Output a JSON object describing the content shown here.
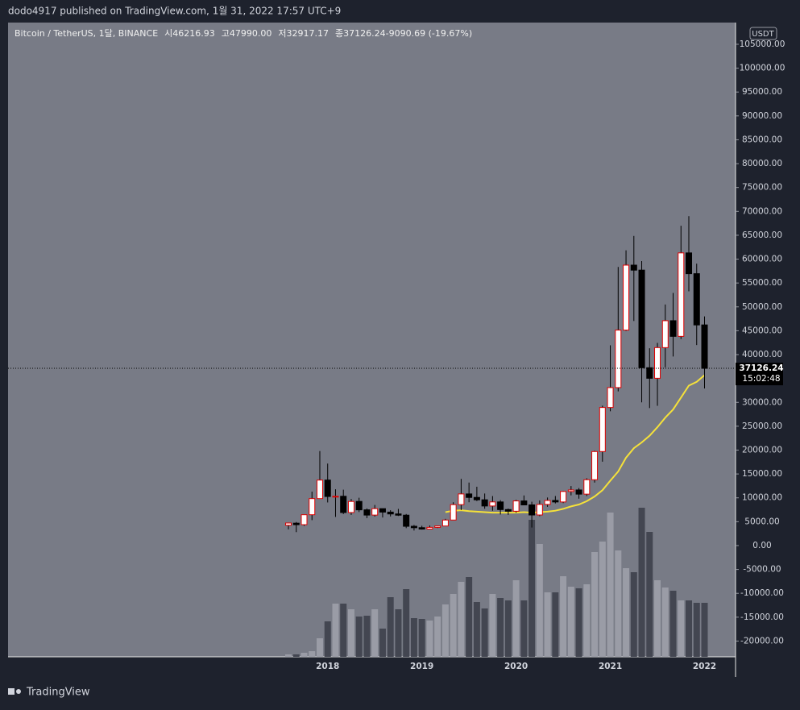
{
  "page": {
    "header": "dodo4917 published on TradingView.com, 1월 31, 2022 17:57 UTC+9",
    "footer": "TradingView"
  },
  "chart_data": {
    "type": "candlestick",
    "symbol": "Bitcoin / TetherUS, 1달, BINANCE",
    "legend": [
      {
        "label": "시",
        "value": "46216.93"
      },
      {
        "label": "고",
        "value": "47990.00"
      },
      {
        "label": "저",
        "value": "32917.17"
      },
      {
        "label": "종",
        "value": "37126.24"
      },
      {
        "label": "",
        "value": "-9090.69 (-19.67%)"
      }
    ],
    "currency": "USDT",
    "last_price": 37126.24,
    "countdown": "15:02:48",
    "categories": [
      null,
      null,
      null,
      null,
      null,
      "2018",
      null,
      null,
      null,
      null,
      null,
      null,
      null,
      null,
      null,
      null,
      null,
      "2019",
      null,
      null,
      null,
      null,
      null,
      null,
      null,
      null,
      null,
      null,
      null,
      "2020",
      null,
      null,
      null,
      null,
      null,
      null,
      null,
      null,
      null,
      null,
      null,
      "2021",
      null,
      null,
      null,
      null,
      null,
      null,
      null,
      null,
      null,
      null,
      null,
      "2022"
    ],
    "open": [
      4261,
      4689,
      4378,
      6463,
      9837,
      13716,
      10285,
      10326,
      6923,
      9246,
      7485,
      6391,
      7730,
      7011,
      6626,
      6369,
      4041,
      3742,
      3458,
      3813,
      4105,
      5350,
      8574,
      10817,
      10086,
      9588,
      8289,
      9140,
      7541,
      7195,
      9352,
      8523,
      6410,
      8620,
      9448,
      9138,
      11335,
      11649,
      10776,
      13791,
      19695,
      28923,
      33092,
      45135,
      58740,
      57694,
      37253,
      35045,
      41462,
      47101,
      43824,
      61300,
      56950,
      46216.93
    ],
    "high": [
      4745,
      4939,
      6470,
      11300,
      19798,
      17176,
      11786,
      11710,
      9759,
      10020,
      7786,
      8507,
      7760,
      7410,
      7680,
      6615,
      4313,
      4143,
      4198,
      4140,
      5600,
      9074,
      13970,
      13200,
      12325,
      10905,
      10370,
      9513,
      7750,
      9578,
      10500,
      9188,
      9460,
      10067,
      10380,
      11444,
      12468,
      12050,
      14100,
      19863,
      29300,
      41950,
      58352,
      61844,
      64854,
      59592,
      41330,
      42448,
      50500,
      52920,
      67000,
      69000,
      59053,
      47990
    ],
    "low": [
      3400,
      2817,
      4110,
      5325,
      10700,
      9035,
      6000,
      6600,
      6430,
      7032,
      5750,
      6070,
      5880,
      6100,
      6200,
      3652,
      3156,
      3349,
      3400,
      3670,
      4067,
      5350,
      7444,
      9070,
      9320,
      7710,
      7300,
      6515,
      6435,
      6871,
      8445,
      3782,
      6150,
      8117,
      8833,
      8893,
      10518,
      9825,
      10374,
      13195,
      17572,
      28130,
      32296,
      44950,
      47044,
      30000,
      28805,
      29278,
      37332,
      39600,
      43283,
      53256,
      42000,
      32917.17
    ],
    "close": [
      4724,
      4378,
      6463,
      9838,
      13716,
      10285,
      10326,
      6923,
      9246,
      7485,
      6391,
      7730,
      7011,
      6626,
      6369,
      4041,
      3742,
      3458,
      3813,
      4105,
      5350,
      8574,
      10817,
      10086,
      9588,
      8289,
      9140,
      7541,
      7195,
      9352,
      8523,
      6410,
      8620,
      9448,
      9138,
      11335,
      11649,
      10776,
      13791,
      19695,
      28923,
      33092,
      45135,
      58740,
      57694,
      37253,
      35045,
      41462,
      47101,
      43824,
      61300,
      56950,
      46216,
      37126.24
    ],
    "ma": [
      null,
      null,
      null,
      null,
      null,
      null,
      null,
      null,
      null,
      null,
      null,
      null,
      null,
      null,
      null,
      null,
      null,
      null,
      null,
      null,
      7000,
      7300,
      7400,
      7200,
      7100,
      7000,
      6900,
      6900,
      6900,
      6900,
      7000,
      6900,
      7000,
      7100,
      7300,
      7700,
      8200,
      8600,
      9300,
      10300,
      11600,
      13600,
      15500,
      18400,
      20400,
      21600,
      23000,
      24800,
      26800,
      28500,
      31000,
      33500,
      34300,
      35700
    ],
    "ma_color": "#f5e13a",
    "volume": [
      30,
      30,
      50,
      70,
      230,
      440,
      660,
      660,
      590,
      500,
      510,
      590,
      350,
      740,
      590,
      840,
      480,
      470,
      450,
      500,
      650,
      780,
      930,
      990,
      680,
      600,
      780,
      730,
      700,
      950,
      700,
      1700,
      1400,
      800,
      800,
      1000,
      870,
      850,
      900,
      1300,
      1430,
      1790,
      1320,
      1100,
      1050,
      1850,
      1550,
      950,
      860,
      820,
      700,
      700,
      670,
      670
    ],
    "volume_lim": [
      0,
      7870
    ],
    "up_color": "#ffffff",
    "up_border": "#e00000",
    "down_color": "#000000",
    "volume_up_color": "#9a9ca6",
    "volume_down_color": "#434651",
    "ylim": [
      -23300,
      109550
    ],
    "yticks": [
      {
        "value": -20000,
        "label": "-20000.00"
      },
      {
        "value": -15000,
        "label": "-15000.00"
      },
      {
        "value": -10000,
        "label": "-10000.00"
      },
      {
        "value": -5000,
        "label": "-5000.00"
      },
      {
        "value": 0,
        "label": "0.00"
      },
      {
        "value": 5000,
        "label": "5000.00"
      },
      {
        "value": 10000,
        "label": "10000.00"
      },
      {
        "value": 15000,
        "label": "15000.00"
      },
      {
        "value": 20000,
        "label": "20000.00"
      },
      {
        "value": 25000,
        "label": "25000.00"
      },
      {
        "value": 30000,
        "label": "30000.00"
      },
      {
        "value": 35000,
        "label": "35000.00"
      },
      {
        "value": 40000,
        "label": "40000.00"
      },
      {
        "value": 45000,
        "label": "45000.00"
      },
      {
        "value": 50000,
        "label": "50000.00"
      },
      {
        "value": 55000,
        "label": "55000.00"
      },
      {
        "value": 60000,
        "label": "60000.00"
      },
      {
        "value": 65000,
        "label": "65000.00"
      },
      {
        "value": 70000,
        "label": "70000.00"
      },
      {
        "value": 75000,
        "label": "75000.00"
      },
      {
        "value": 80000,
        "label": "80000.00"
      },
      {
        "value": 85000,
        "label": "85000.00"
      },
      {
        "value": 90000,
        "label": "90000.00"
      },
      {
        "value": 95000,
        "label": "95000.00"
      },
      {
        "value": 100000,
        "label": "100000.00"
      },
      {
        "value": 105000,
        "label": "105000.00"
      }
    ],
    "grid": false
  }
}
